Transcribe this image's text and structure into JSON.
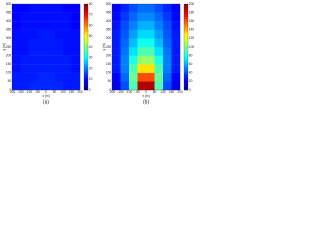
{
  "chart_data": [
    {
      "type": "heatmap",
      "caption": "(a)",
      "xlabel": "x [m]",
      "ylabel": "y [m]",
      "colormap": "jet",
      "x": [
        -175,
        -125,
        -75,
        -25,
        25,
        75,
        125,
        175
      ],
      "y": [
        25,
        75,
        125,
        175,
        225,
        275,
        325,
        375,
        425,
        475
      ],
      "values": [
        [
          12,
          12,
          13,
          13,
          13,
          13,
          12,
          12
        ],
        [
          12,
          12,
          12,
          13,
          13,
          12,
          12,
          12
        ],
        [
          11,
          12,
          12,
          12,
          12,
          12,
          12,
          11
        ],
        [
          11,
          12,
          12,
          12,
          12,
          12,
          12,
          11
        ],
        [
          11,
          11,
          12,
          12,
          12,
          12,
          11,
          11
        ],
        [
          11,
          11,
          12,
          12,
          12,
          12,
          11,
          11
        ],
        [
          11,
          11,
          11,
          12,
          12,
          11,
          11,
          11
        ],
        [
          10,
          11,
          11,
          11,
          11,
          11,
          11,
          10
        ],
        [
          10,
          11,
          11,
          11,
          11,
          11,
          11,
          10
        ],
        [
          10,
          10,
          11,
          11,
          11,
          11,
          10,
          10
        ]
      ],
      "xlim": [
        -200,
        200
      ],
      "ylim": [
        0,
        500
      ],
      "xticks": [
        -200,
        -150,
        -100,
        -50,
        0,
        50,
        100,
        150,
        200
      ],
      "yticks": [
        0,
        50,
        100,
        150,
        200,
        250,
        300,
        350,
        400,
        450,
        500
      ],
      "zlim": [
        0,
        80
      ],
      "zticks": [
        0,
        10,
        20,
        30,
        40,
        50,
        60,
        70,
        80
      ]
    },
    {
      "type": "heatmap",
      "caption": "(b)",
      "xlabel": "x [m]",
      "ylabel": "y [m]",
      "colormap": "jet",
      "x": [
        -175,
        -125,
        -75,
        -25,
        25,
        75,
        125,
        175
      ],
      "y": [
        25,
        75,
        125,
        175,
        225,
        275,
        325,
        375,
        425,
        475
      ],
      "values": [
        [
          20,
          40,
          90,
          190,
          190,
          90,
          40,
          20
        ],
        [
          25,
          45,
          95,
          160,
          160,
          95,
          45,
          25
        ],
        [
          30,
          50,
          90,
          130,
          130,
          90,
          50,
          30
        ],
        [
          30,
          50,
          80,
          105,
          105,
          80,
          50,
          30
        ],
        [
          30,
          48,
          70,
          90,
          90,
          70,
          48,
          30
        ],
        [
          30,
          45,
          62,
          78,
          78,
          62,
          45,
          30
        ],
        [
          30,
          42,
          56,
          68,
          68,
          56,
          42,
          30
        ],
        [
          28,
          40,
          50,
          60,
          60,
          50,
          40,
          28
        ],
        [
          26,
          36,
          45,
          52,
          52,
          45,
          36,
          26
        ],
        [
          24,
          32,
          40,
          46,
          46,
          40,
          32,
          24
        ]
      ],
      "xlim": [
        -200,
        200
      ],
      "ylim": [
        0,
        500
      ],
      "xticks": [
        -200,
        -150,
        -100,
        -50,
        0,
        50,
        100,
        150,
        200
      ],
      "yticks": [
        0,
        50,
        100,
        150,
        200,
        250,
        300,
        350,
        400,
        450,
        500
      ],
      "zlim": [
        0,
        200
      ],
      "zticks": [
        0,
        20,
        40,
        60,
        80,
        100,
        120,
        140,
        160,
        180,
        200
      ]
    }
  ]
}
